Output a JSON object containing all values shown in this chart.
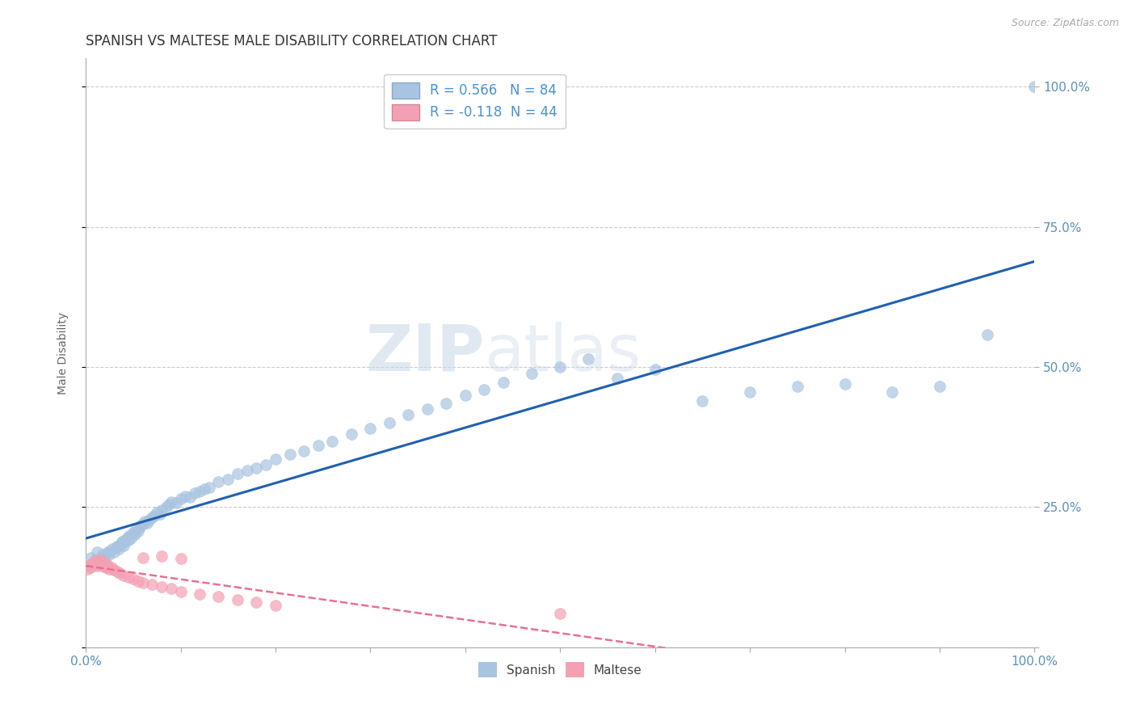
{
  "title": "SPANISH VS MALTESE MALE DISABILITY CORRELATION CHART",
  "source": "Source: ZipAtlas.com",
  "ylabel": "Male Disability",
  "xlim": [
    0.0,
    1.0
  ],
  "ylim": [
    0.0,
    1.05
  ],
  "xticks": [
    0.0,
    0.1,
    0.2,
    0.3,
    0.4,
    0.5,
    0.6,
    0.7,
    0.8,
    0.9,
    1.0
  ],
  "xtick_labels": [
    "0.0%",
    "",
    "",
    "",
    "",
    "",
    "",
    "",
    "",
    "",
    "100.0%"
  ],
  "yticks": [
    0.0,
    0.25,
    0.5,
    0.75,
    1.0
  ],
  "ytick_labels": [
    "",
    "25.0%",
    "50.0%",
    "75.0%",
    "100.0%"
  ],
  "spanish_color": "#a8c4e0",
  "maltese_color": "#f4a0b4",
  "trend_spanish_color": "#2060b0",
  "trend_maltese_color": "#e87090",
  "R_spanish": 0.566,
  "N_spanish": 84,
  "R_maltese": -0.118,
  "N_maltese": 44,
  "watermark_zip": "ZIP",
  "watermark_atlas": "atlas",
  "background_color": "#ffffff",
  "grid_color": "#cccccc",
  "title_color": "#333333",
  "axis_label_color": "#5a8fc0",
  "legend_r_color": "#4a90d9",
  "spanish_x": [
    0.005,
    0.01,
    0.012,
    0.015,
    0.018,
    0.02,
    0.022,
    0.025,
    0.025,
    0.028,
    0.03,
    0.032,
    0.033,
    0.035,
    0.035,
    0.037,
    0.038,
    0.04,
    0.04,
    0.042,
    0.043,
    0.045,
    0.045,
    0.047,
    0.048,
    0.05,
    0.052,
    0.053,
    0.055,
    0.057,
    0.058,
    0.06,
    0.062,
    0.065,
    0.067,
    0.07,
    0.072,
    0.075,
    0.078,
    0.08,
    0.085,
    0.088,
    0.09,
    0.095,
    0.1,
    0.105,
    0.11,
    0.115,
    0.12,
    0.125,
    0.13,
    0.14,
    0.15,
    0.16,
    0.17,
    0.18,
    0.19,
    0.2,
    0.215,
    0.23,
    0.245,
    0.26,
    0.28,
    0.3,
    0.32,
    0.34,
    0.36,
    0.38,
    0.4,
    0.42,
    0.44,
    0.47,
    0.5,
    0.53,
    0.56,
    0.6,
    0.65,
    0.7,
    0.75,
    0.8,
    0.85,
    0.9,
    0.95,
    1.0
  ],
  "spanish_y": [
    0.16,
    0.155,
    0.17,
    0.158,
    0.165,
    0.162,
    0.168,
    0.165,
    0.172,
    0.175,
    0.17,
    0.178,
    0.18,
    0.175,
    0.182,
    0.185,
    0.188,
    0.182,
    0.19,
    0.188,
    0.195,
    0.192,
    0.198,
    0.2,
    0.195,
    0.205,
    0.202,
    0.21,
    0.208,
    0.215,
    0.218,
    0.22,
    0.225,
    0.222,
    0.228,
    0.232,
    0.235,
    0.24,
    0.238,
    0.245,
    0.25,
    0.255,
    0.26,
    0.258,
    0.265,
    0.27,
    0.268,
    0.275,
    0.278,
    0.282,
    0.285,
    0.295,
    0.3,
    0.31,
    0.315,
    0.32,
    0.325,
    0.335,
    0.345,
    0.35,
    0.36,
    0.368,
    0.38,
    0.39,
    0.4,
    0.415,
    0.425,
    0.435,
    0.45,
    0.46,
    0.472,
    0.488,
    0.5,
    0.515,
    0.48,
    0.495,
    0.44,
    0.455,
    0.465,
    0.47,
    0.455,
    0.465,
    0.558,
    1.0
  ],
  "maltese_x": [
    0.002,
    0.004,
    0.005,
    0.006,
    0.007,
    0.008,
    0.009,
    0.01,
    0.011,
    0.012,
    0.013,
    0.014,
    0.015,
    0.016,
    0.017,
    0.018,
    0.019,
    0.02,
    0.021,
    0.022,
    0.023,
    0.025,
    0.027,
    0.03,
    0.033,
    0.036,
    0.04,
    0.045,
    0.05,
    0.055,
    0.06,
    0.07,
    0.08,
    0.09,
    0.1,
    0.12,
    0.14,
    0.16,
    0.18,
    0.2,
    0.06,
    0.08,
    0.1,
    0.5
  ],
  "maltese_y": [
    0.14,
    0.145,
    0.142,
    0.148,
    0.15,
    0.145,
    0.152,
    0.148,
    0.155,
    0.15,
    0.145,
    0.152,
    0.148,
    0.155,
    0.15,
    0.145,
    0.148,
    0.145,
    0.142,
    0.148,
    0.145,
    0.14,
    0.142,
    0.138,
    0.135,
    0.132,
    0.128,
    0.125,
    0.122,
    0.118,
    0.115,
    0.112,
    0.108,
    0.105,
    0.1,
    0.095,
    0.09,
    0.085,
    0.08,
    0.075,
    0.16,
    0.162,
    0.158,
    0.06
  ]
}
